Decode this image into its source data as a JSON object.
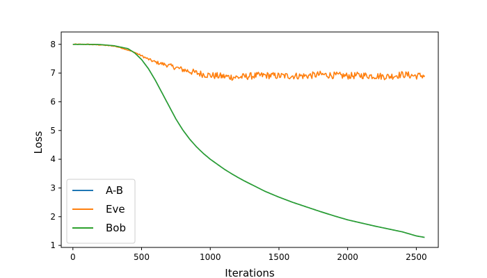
{
  "chart_data": {
    "type": "line",
    "title": "",
    "xlabel": "Iterations",
    "ylabel": "Loss",
    "xlim": [
      -85,
      2660
    ],
    "ylim": [
      0.93,
      8.43
    ],
    "xticks": [
      0,
      500,
      1000,
      1500,
      2000,
      2500
    ],
    "yticks": [
      1,
      2,
      3,
      4,
      5,
      6,
      7,
      8
    ],
    "grid": false,
    "legend_position": "lower-left",
    "x_max": 2560,
    "series": [
      {
        "name": "A-B",
        "color": "#1f77b4",
        "points": [
          [
            0,
            8.0
          ],
          [
            100,
            8.0
          ],
          [
            200,
            7.99
          ],
          [
            300,
            7.95
          ],
          [
            400,
            7.85
          ],
          [
            450,
            7.7
          ],
          [
            500,
            7.47
          ],
          [
            550,
            7.15
          ],
          [
            600,
            6.75
          ],
          [
            650,
            6.3
          ],
          [
            700,
            5.85
          ],
          [
            750,
            5.4
          ],
          [
            800,
            5.02
          ],
          [
            850,
            4.7
          ],
          [
            900,
            4.43
          ],
          [
            950,
            4.2
          ],
          [
            1000,
            4.0
          ],
          [
            1050,
            3.83
          ],
          [
            1100,
            3.66
          ],
          [
            1150,
            3.51
          ],
          [
            1200,
            3.37
          ],
          [
            1250,
            3.24
          ],
          [
            1300,
            3.12
          ],
          [
            1400,
            2.88
          ],
          [
            1500,
            2.68
          ],
          [
            1600,
            2.5
          ],
          [
            1700,
            2.34
          ],
          [
            1800,
            2.18
          ],
          [
            1900,
            2.03
          ],
          [
            2000,
            1.89
          ],
          [
            2100,
            1.78
          ],
          [
            2200,
            1.67
          ],
          [
            2300,
            1.57
          ],
          [
            2400,
            1.47
          ],
          [
            2500,
            1.33
          ],
          [
            2560,
            1.28
          ]
        ]
      },
      {
        "name": "Eve",
        "color": "#ff7f0e",
        "noise": 0.12,
        "points": [
          [
            0,
            8.0
          ],
          [
            100,
            8.0
          ],
          [
            200,
            7.98
          ],
          [
            300,
            7.94
          ],
          [
            350,
            7.88
          ],
          [
            400,
            7.8
          ],
          [
            450,
            7.72
          ],
          [
            500,
            7.6
          ],
          [
            550,
            7.48
          ],
          [
            600,
            7.38
          ],
          [
            700,
            7.26
          ],
          [
            800,
            7.12
          ],
          [
            900,
            7.0
          ],
          [
            1000,
            6.92
          ],
          [
            1100,
            6.88
          ],
          [
            1200,
            6.85
          ],
          [
            1300,
            6.9
          ],
          [
            1400,
            6.92
          ],
          [
            1500,
            6.9
          ],
          [
            1600,
            6.9
          ],
          [
            1700,
            6.9
          ],
          [
            1800,
            6.95
          ],
          [
            1900,
            6.92
          ],
          [
            2000,
            6.9
          ],
          [
            2100,
            6.92
          ],
          [
            2200,
            6.9
          ],
          [
            2300,
            6.88
          ],
          [
            2400,
            6.95
          ],
          [
            2500,
            6.9
          ],
          [
            2560,
            6.92
          ]
        ]
      },
      {
        "name": "Bob",
        "color": "#2ca02c",
        "points": [
          [
            0,
            8.0
          ],
          [
            100,
            8.0
          ],
          [
            200,
            7.99
          ],
          [
            300,
            7.95
          ],
          [
            400,
            7.85
          ],
          [
            450,
            7.7
          ],
          [
            500,
            7.47
          ],
          [
            550,
            7.15
          ],
          [
            600,
            6.75
          ],
          [
            650,
            6.3
          ],
          [
            700,
            5.85
          ],
          [
            750,
            5.4
          ],
          [
            800,
            5.02
          ],
          [
            850,
            4.7
          ],
          [
            900,
            4.43
          ],
          [
            950,
            4.2
          ],
          [
            1000,
            4.0
          ],
          [
            1050,
            3.83
          ],
          [
            1100,
            3.66
          ],
          [
            1150,
            3.51
          ],
          [
            1200,
            3.37
          ],
          [
            1250,
            3.24
          ],
          [
            1300,
            3.12
          ],
          [
            1400,
            2.88
          ],
          [
            1500,
            2.68
          ],
          [
            1600,
            2.5
          ],
          [
            1700,
            2.34
          ],
          [
            1800,
            2.18
          ],
          [
            1900,
            2.03
          ],
          [
            2000,
            1.89
          ],
          [
            2100,
            1.78
          ],
          [
            2200,
            1.67
          ],
          [
            2300,
            1.57
          ],
          [
            2400,
            1.47
          ],
          [
            2500,
            1.33
          ],
          [
            2560,
            1.28
          ]
        ]
      }
    ]
  }
}
